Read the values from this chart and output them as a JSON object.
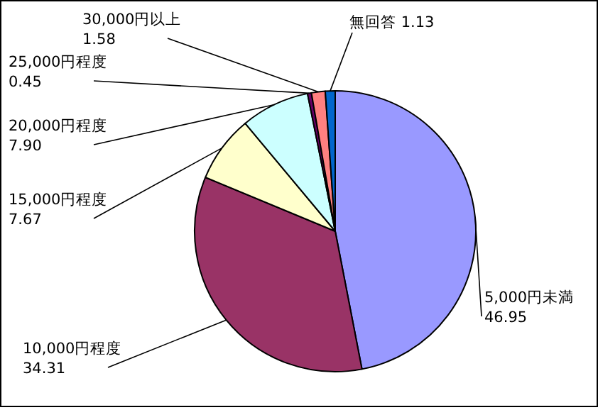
{
  "chart_data": {
    "type": "pie",
    "categories": [
      "5,000円未満",
      "10,000円程度",
      "15,000円程度",
      "20,000円程度",
      "25,000円程度",
      "30,000円以上",
      "無回答"
    ],
    "values": [
      46.95,
      34.31,
      7.67,
      7.9,
      0.45,
      1.58,
      1.13
    ],
    "value_labels": [
      "46.95",
      "34.31",
      "7.67",
      "7.90",
      "0.45",
      "1.58",
      "1.13"
    ],
    "colors": [
      "#9999ff",
      "#993366",
      "#ffffcc",
      "#ccffff",
      "#660066",
      "#ff8080",
      "#0066cc"
    ]
  }
}
